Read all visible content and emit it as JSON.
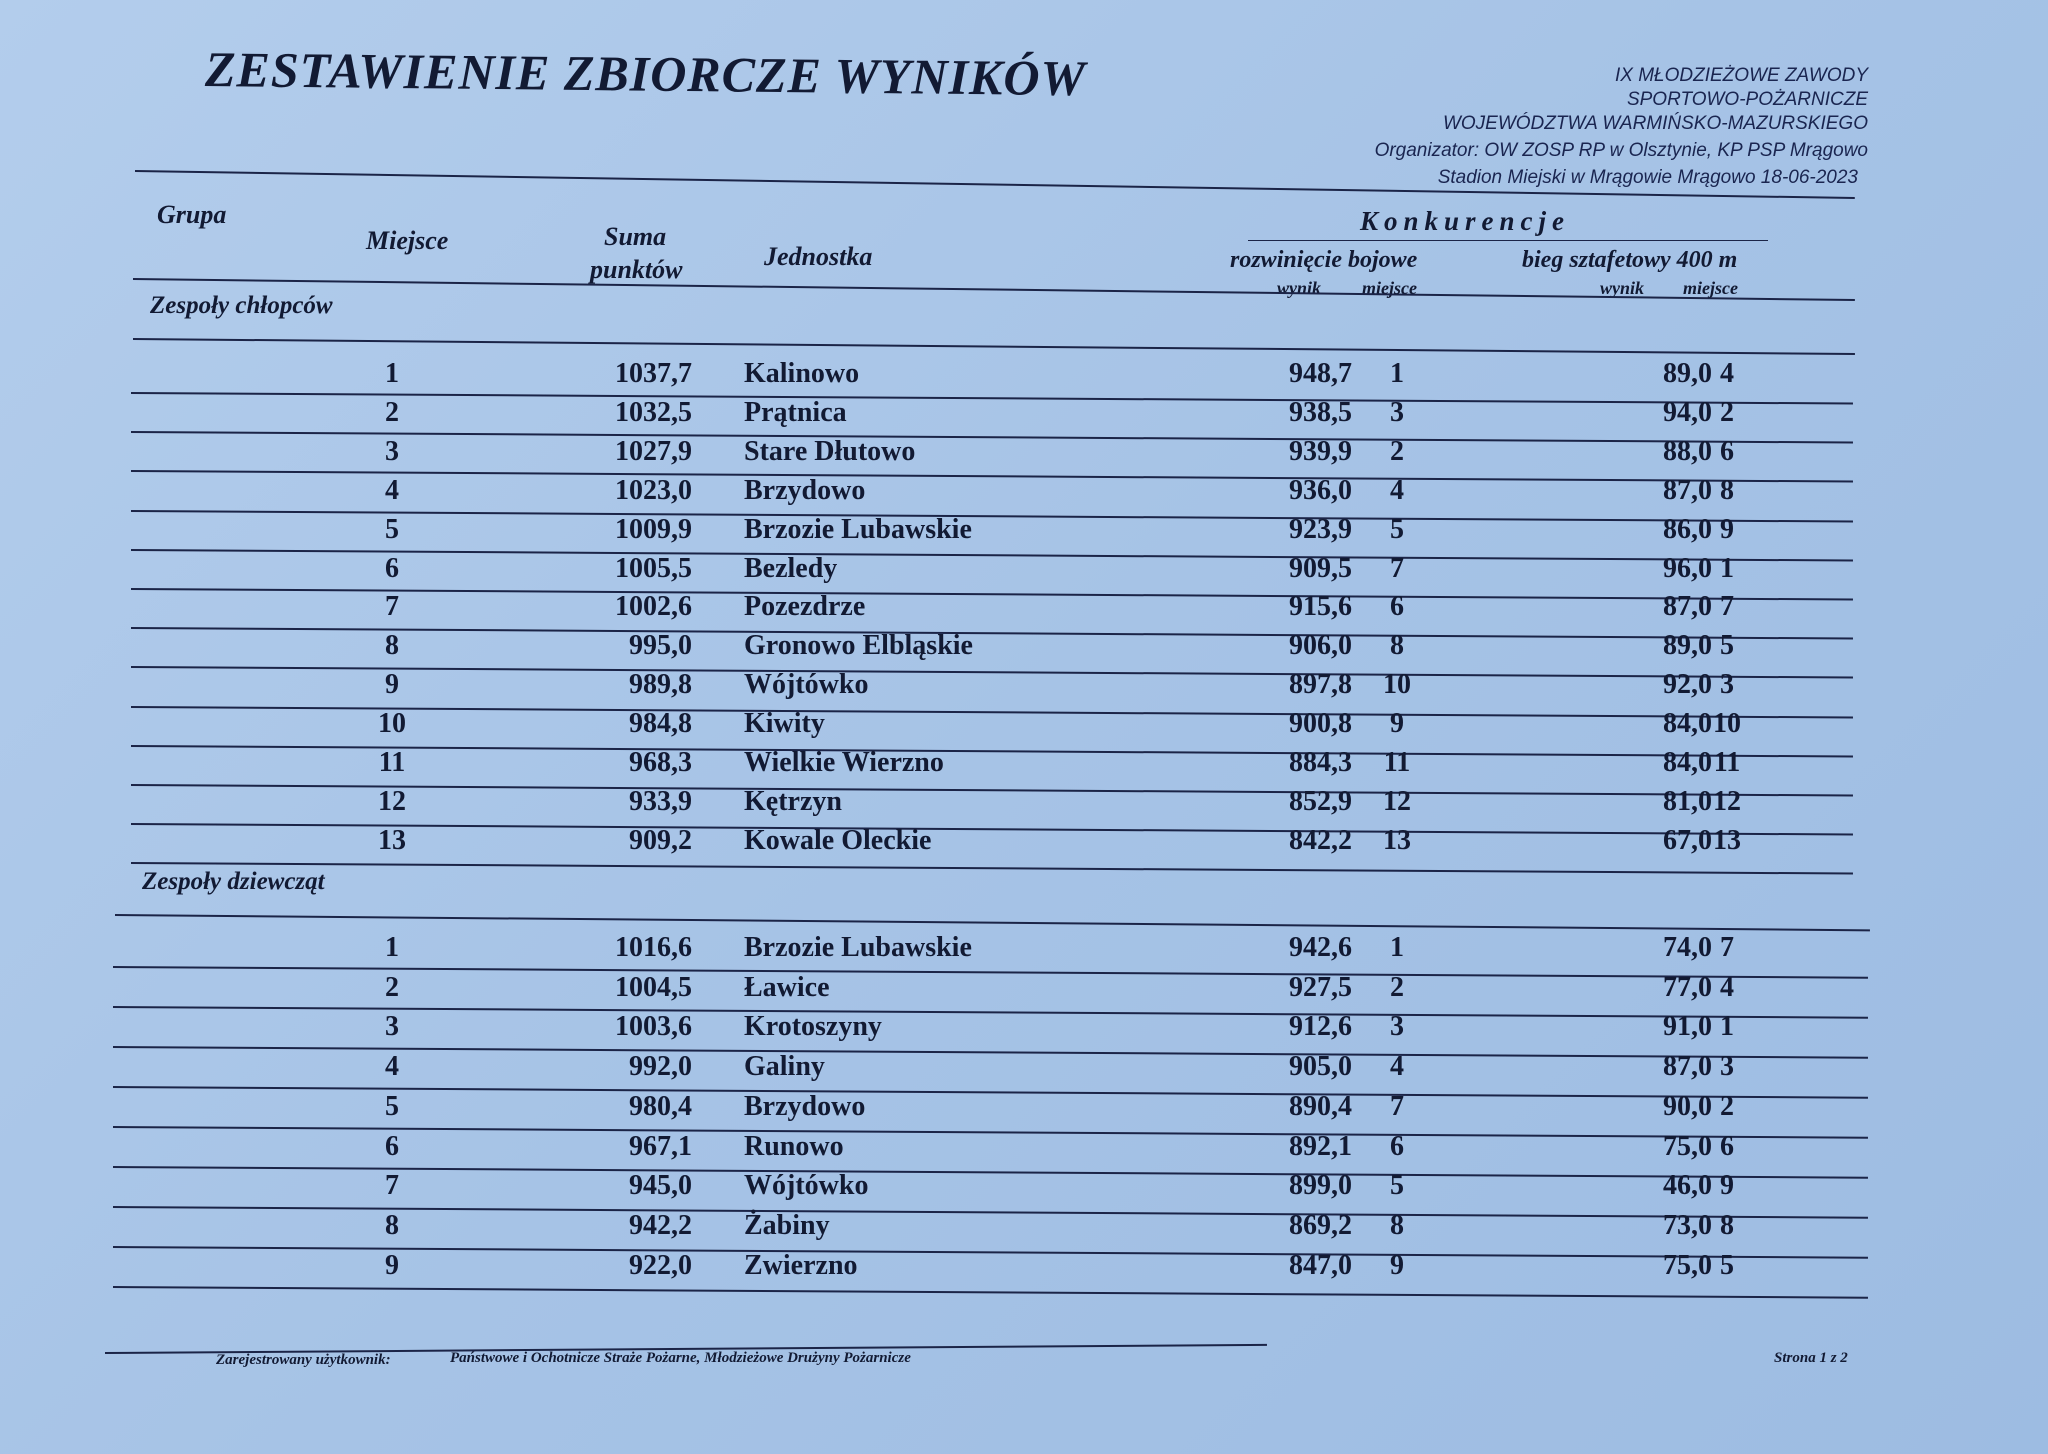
{
  "title": "ZESTAWIENIE ZBIORCZE WYNIKÓW",
  "event": {
    "line1": "IX MŁODZIEŻOWE ZAWODY",
    "line2": "SPORTOWO-POŻARNICZE",
    "line3": "WOJEWÓDZTWA WARMIŃSKO-MAZURSKIEGO",
    "organizer": "Organizator: OW ZOSP RP w Olsztynie, KP PSP Mrągowo",
    "venue_date": "Stadion Miejski w Mrągowie Mrągowo  18-06-2023"
  },
  "table_header": {
    "grupa": "Grupa",
    "miejsce": "Miejsce",
    "suma_line1": "Suma",
    "suma_line2": "punktów",
    "jednostka": "Jednostka",
    "konkurencje": "Konkurencje",
    "comp1": "rozwinięcie bojowe",
    "comp2": "bieg sztafetowy 400 m",
    "wynik": "wynik",
    "miejsce_sub": "miejsce"
  },
  "groups": [
    {
      "name": "Zespoły chłopców",
      "rows": [
        {
          "place": "1",
          "sum": "1037,7",
          "unit": "Kalinowo",
          "c1_result": "948,7",
          "c1_place": "1",
          "c2_result": "89,0",
          "c2_place": "4"
        },
        {
          "place": "2",
          "sum": "1032,5",
          "unit": "Prątnica",
          "c1_result": "938,5",
          "c1_place": "3",
          "c2_result": "94,0",
          "c2_place": "2"
        },
        {
          "place": "3",
          "sum": "1027,9",
          "unit": "Stare Dłutowo",
          "c1_result": "939,9",
          "c1_place": "2",
          "c2_result": "88,0",
          "c2_place": "6"
        },
        {
          "place": "4",
          "sum": "1023,0",
          "unit": "Brzydowo",
          "c1_result": "936,0",
          "c1_place": "4",
          "c2_result": "87,0",
          "c2_place": "8"
        },
        {
          "place": "5",
          "sum": "1009,9",
          "unit": "Brzozie Lubawskie",
          "c1_result": "923,9",
          "c1_place": "5",
          "c2_result": "86,0",
          "c2_place": "9"
        },
        {
          "place": "6",
          "sum": "1005,5",
          "unit": "Bezledy",
          "c1_result": "909,5",
          "c1_place": "7",
          "c2_result": "96,0",
          "c2_place": "1"
        },
        {
          "place": "7",
          "sum": "1002,6",
          "unit": "Pozezdrze",
          "c1_result": "915,6",
          "c1_place": "6",
          "c2_result": "87,0",
          "c2_place": "7"
        },
        {
          "place": "8",
          "sum": "995,0",
          "unit": "Gronowo Elbląskie",
          "c1_result": "906,0",
          "c1_place": "8",
          "c2_result": "89,0",
          "c2_place": "5"
        },
        {
          "place": "9",
          "sum": "989,8",
          "unit": "Wójtówko",
          "c1_result": "897,8",
          "c1_place": "10",
          "c2_result": "92,0",
          "c2_place": "3"
        },
        {
          "place": "10",
          "sum": "984,8",
          "unit": "Kiwity",
          "c1_result": "900,8",
          "c1_place": "9",
          "c2_result": "84,0",
          "c2_place": "10"
        },
        {
          "place": "11",
          "sum": "968,3",
          "unit": "Wielkie Wierzno",
          "c1_result": "884,3",
          "c1_place": "11",
          "c2_result": "84,0",
          "c2_place": "11"
        },
        {
          "place": "12",
          "sum": "933,9",
          "unit": "Kętrzyn",
          "c1_result": "852,9",
          "c1_place": "12",
          "c2_result": "81,0",
          "c2_place": "12"
        },
        {
          "place": "13",
          "sum": "909,2",
          "unit": "Kowale Oleckie",
          "c1_result": "842,2",
          "c1_place": "13",
          "c2_result": "67,0",
          "c2_place": "13"
        }
      ]
    },
    {
      "name": "Zespoły dziewcząt",
      "rows": [
        {
          "place": "1",
          "sum": "1016,6",
          "unit": "Brzozie Lubawskie",
          "c1_result": "942,6",
          "c1_place": "1",
          "c2_result": "74,0",
          "c2_place": "7"
        },
        {
          "place": "2",
          "sum": "1004,5",
          "unit": "Ławice",
          "c1_result": "927,5",
          "c1_place": "2",
          "c2_result": "77,0",
          "c2_place": "4"
        },
        {
          "place": "3",
          "sum": "1003,6",
          "unit": "Krotoszyny",
          "c1_result": "912,6",
          "c1_place": "3",
          "c2_result": "91,0",
          "c2_place": "1"
        },
        {
          "place": "4",
          "sum": "992,0",
          "unit": "Galiny",
          "c1_result": "905,0",
          "c1_place": "4",
          "c2_result": "87,0",
          "c2_place": "3"
        },
        {
          "place": "5",
          "sum": "980,4",
          "unit": "Brzydowo",
          "c1_result": "890,4",
          "c1_place": "7",
          "c2_result": "90,0",
          "c2_place": "2"
        },
        {
          "place": "6",
          "sum": "967,1",
          "unit": "Runowo",
          "c1_result": "892,1",
          "c1_place": "6",
          "c2_result": "75,0",
          "c2_place": "6"
        },
        {
          "place": "7",
          "sum": "945,0",
          "unit": "Wójtówko",
          "c1_result": "899,0",
          "c1_place": "5",
          "c2_result": "46,0",
          "c2_place": "9"
        },
        {
          "place": "8",
          "sum": "942,2",
          "unit": "Żabiny",
          "c1_result": "869,2",
          "c1_place": "8",
          "c2_result": "73,0",
          "c2_place": "8"
        },
        {
          "place": "9",
          "sum": "922,0",
          "unit": "Zwierzno",
          "c1_result": "847,0",
          "c1_place": "9",
          "c2_result": "75,0",
          "c2_place": "5"
        }
      ]
    }
  ],
  "footer": {
    "registered_label": "Zarejestrowany użytkownik:",
    "registered_value": "Państwowe i Ochotnicze Straże Pożarne, Młodzieżowe Drużyny Pożarnicze",
    "page": "Strona 1 z 2"
  }
}
